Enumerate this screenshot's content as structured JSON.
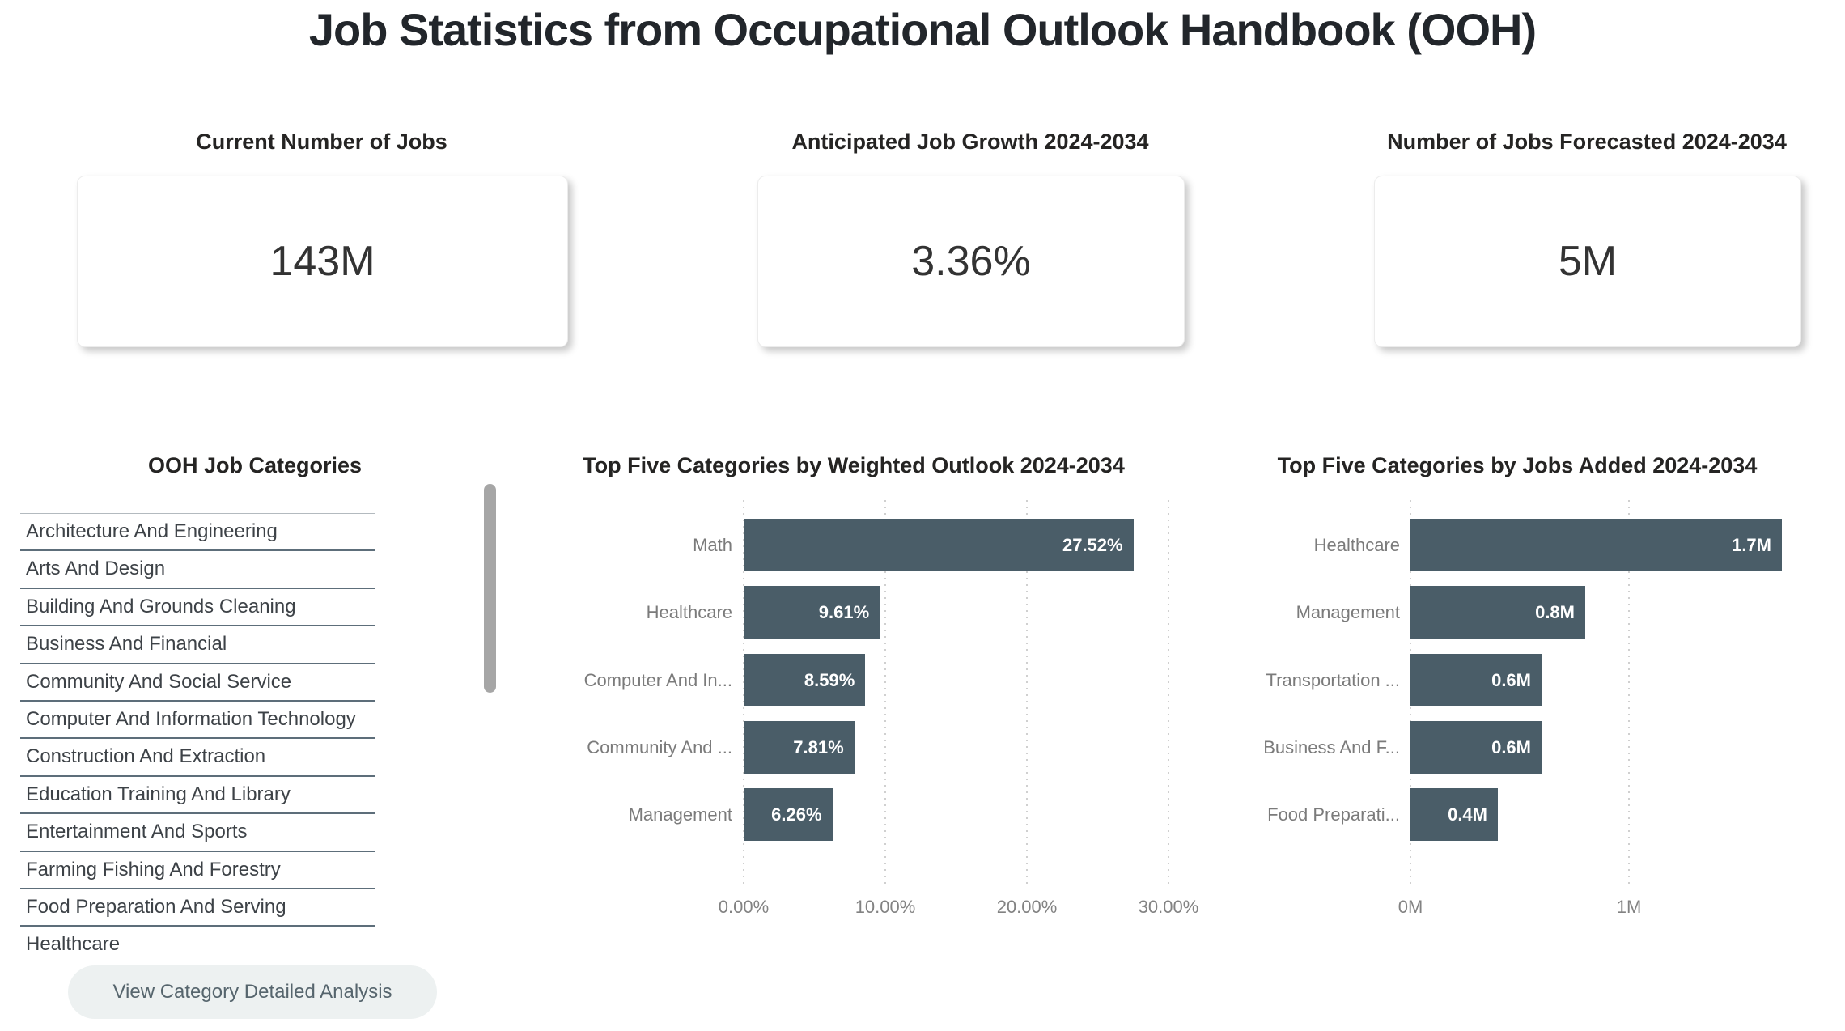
{
  "title": "Job Statistics from Occupational Outlook Handbook (OOH)",
  "kpis": [
    {
      "label": "Current Number of Jobs",
      "value": "143M"
    },
    {
      "label": "Anticipated Job Growth 2024-2034",
      "value": "3.36%"
    },
    {
      "label": "Number of Jobs Forecasted 2024-2034",
      "value": "5M"
    }
  ],
  "categories_panel": {
    "title": "OOH Job Categories",
    "items": [
      "Architecture And Engineering",
      "Arts And Design",
      "Building And Grounds Cleaning",
      "Business And Financial",
      "Community And Social Service",
      "Computer And Information Technology",
      "Construction And Extraction",
      "Education Training And Library",
      "Entertainment And Sports",
      "Farming Fishing And Forestry",
      "Food Preparation And Serving",
      "Healthcare"
    ],
    "button_label": "View Category Detailed Analysis"
  },
  "chart_data": [
    {
      "type": "bar",
      "orientation": "horizontal",
      "title": "Top Five Categories by Weighted Outlook 2024-2034",
      "categories": [
        "Math",
        "Healthcare",
        "Computer And In...",
        "Community And ...",
        "Management"
      ],
      "values": [
        27.52,
        9.61,
        8.59,
        7.81,
        6.26
      ],
      "value_labels": [
        "27.52%",
        "9.61%",
        "8.59%",
        "7.81%",
        "6.26%"
      ],
      "x_ticks": [
        {
          "label": "0.00%",
          "value": 0
        },
        {
          "label": "10.00%",
          "value": 10
        },
        {
          "label": "20.00%",
          "value": 20
        },
        {
          "label": "30.00%",
          "value": 30
        }
      ],
      "xlim": [
        0,
        30.9
      ],
      "grid": "dotted-vertical",
      "legend": "none",
      "bar_color": "#4A5D68",
      "value_label_position": "inside-end"
    },
    {
      "type": "bar",
      "orientation": "horizontal",
      "title": "Top Five Categories by Jobs Added 2024-2034",
      "categories": [
        "Healthcare",
        "Management",
        "Transportation ...",
        "Business And F...",
        "Food Preparati..."
      ],
      "values": [
        1.7,
        0.8,
        0.6,
        0.6,
        0.4
      ],
      "value_labels": [
        "1.7M",
        "0.8M",
        "0.6M",
        "0.6M",
        "0.4M"
      ],
      "x_ticks": [
        {
          "label": "0M",
          "value": 0
        },
        {
          "label": "1M",
          "value": 1
        }
      ],
      "xlim": [
        0,
        1.95
      ],
      "grid": "dotted-vertical",
      "legend": "none",
      "bar_color": "#4A5D68",
      "value_label_position": "inside-end"
    }
  ],
  "colors": {
    "bar": "#4A5D68",
    "button_bg": "#EDF1F1",
    "button_text": "#56656D",
    "grid": "#D0D0D0",
    "axis_text": "#828282"
  }
}
